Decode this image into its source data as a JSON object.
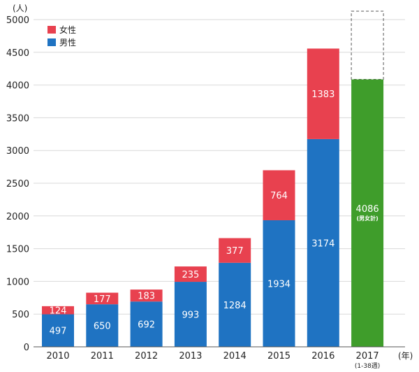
{
  "chart_data": {
    "type": "bar",
    "stacked": true,
    "y_unit": "(人)",
    "x_unit": "(年)",
    "ylim": [
      0,
      5000
    ],
    "yticks": [
      0,
      500,
      1000,
      1500,
      2000,
      2500,
      3000,
      3500,
      4000,
      4500,
      5000
    ],
    "categories": [
      "2010",
      "2011",
      "2012",
      "2013",
      "2014",
      "2015",
      "2016",
      "2017"
    ],
    "category_note": {
      "2017": "(1-38週)"
    },
    "series": [
      {
        "name": "男性",
        "color": "#1f73c2",
        "values": [
          497,
          650,
          692,
          993,
          1284,
          1934,
          3174,
          null
        ]
      },
      {
        "name": "女性",
        "color": "#e8414f",
        "values": [
          124,
          177,
          183,
          235,
          377,
          764,
          1383,
          null
        ]
      }
    ],
    "total_bar": {
      "category": "2017",
      "value": 4086,
      "label": "4086",
      "sublabel": "(男女計)",
      "color": "#3f9d2b",
      "projection_outline_top": 5000
    },
    "legend": {
      "position": "top-left",
      "items": [
        "女性",
        "男性"
      ]
    },
    "grid": true
  }
}
